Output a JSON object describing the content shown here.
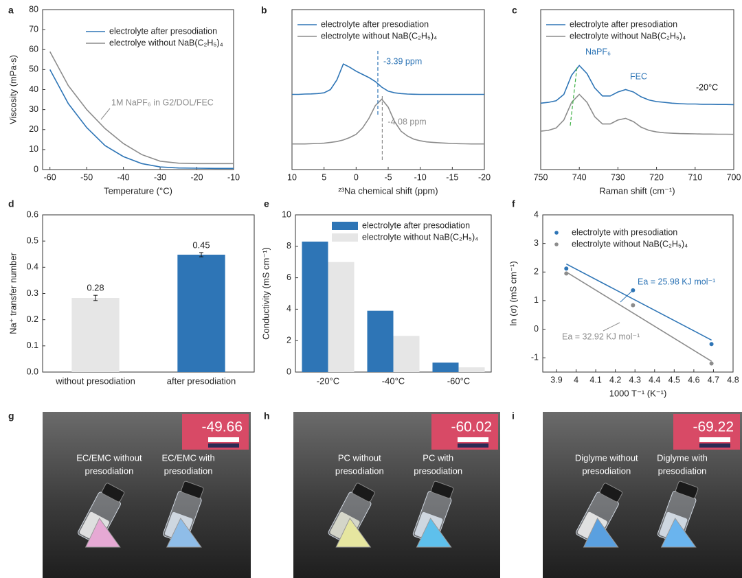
{
  "chart_data": [
    {
      "panel": "a",
      "type": "line",
      "xlabel": "Temperature (°C)",
      "ylabel": "Viscosity (mPa·s)",
      "legend": "upper right",
      "x": [
        -60,
        -55,
        -50,
        -45,
        -40,
        -35,
        -30,
        -25,
        -20,
        -15,
        -10
      ],
      "series": [
        {
          "name": "electrolyte after presodiation",
          "color": "#2e75b6",
          "values": [
            50,
            33,
            21,
            12,
            6.5,
            3,
            1.3,
            0.8,
            0.7,
            0.6,
            0.6
          ]
        },
        {
          "name": "electrolye without NaB(C₂H₅)₄",
          "color": "#8c8c8c",
          "values": [
            59,
            42,
            30,
            20.5,
            13,
            7.5,
            4.2,
            3.2,
            3,
            3,
            3
          ]
        }
      ],
      "xlim": [
        -62,
        -10
      ],
      "xticks": [
        -60,
        -50,
        -40,
        -30,
        -20,
        -10
      ],
      "ylim": [
        0,
        80
      ],
      "yticks": [
        0,
        10,
        20,
        30,
        40,
        50,
        60,
        70,
        80
      ],
      "annotation": "1M NaPF₆ in G2/DOL/FEC"
    },
    {
      "panel": "b",
      "type": "line",
      "xlabel": "²³Na chemical shift (ppm)",
      "legend": "upper left",
      "x": [
        10,
        9,
        8,
        7,
        6,
        5,
        4,
        3,
        2,
        1,
        0,
        -1,
        -2,
        -3,
        -4,
        -5,
        -6,
        -7,
        -8,
        -9,
        -10,
        -11,
        -12,
        -13,
        -14,
        -15,
        -16,
        -17,
        -18,
        -19,
        -20
      ],
      "series": [
        {
          "name": "electrolyte after presodiation",
          "color": "#2e75b6",
          "values": [
            4.7,
            4.7,
            4.72,
            4.73,
            4.75,
            4.8,
            5.0,
            5.6,
            6.6,
            6.4,
            6.15,
            5.95,
            5.75,
            5.5,
            5.15,
            4.9,
            4.8,
            4.75,
            4.72,
            4.71,
            4.7,
            4.7,
            4.7,
            4.7,
            4.7,
            4.7,
            4.7,
            4.7,
            4.7,
            4.7,
            4.7
          ]
        },
        {
          "name": "electrolyte without NaB(C₂H₅)₄",
          "color": "#8c8c8c",
          "values": [
            1.6,
            1.6,
            1.6,
            1.62,
            1.63,
            1.65,
            1.7,
            1.75,
            1.85,
            2.0,
            2.2,
            2.6,
            3.2,
            4.0,
            4.4,
            3.9,
            3.0,
            2.4,
            2.1,
            1.9,
            1.8,
            1.73,
            1.7,
            1.67,
            1.65,
            1.63,
            1.62,
            1.61,
            1.6,
            1.6,
            1.6
          ]
        }
      ],
      "xlim": [
        10,
        -20
      ],
      "xticks": [
        10,
        5,
        0,
        -5,
        -10,
        -15,
        -20
      ],
      "ylim": [
        0,
        10
      ],
      "markers": [
        {
          "label": "-3.39 ppm",
          "x": -3.39
        },
        {
          "label": "-4.08 ppm",
          "x": -4.08
        }
      ]
    },
    {
      "panel": "c",
      "type": "line",
      "xlabel": "Raman shift (cm⁻¹)",
      "legend": "upper left",
      "x": [
        750,
        748,
        746,
        744,
        742,
        740,
        738,
        736,
        734,
        732,
        730,
        728,
        726,
        724,
        722,
        720,
        718,
        716,
        714,
        712,
        710,
        708,
        706,
        704,
        702,
        700
      ],
      "series": [
        {
          "name": "electrolyte after presodiation",
          "color": "#2e75b6",
          "values": [
            4.15,
            4.2,
            4.3,
            4.7,
            5.9,
            6.5,
            6.0,
            5.1,
            4.6,
            4.6,
            4.85,
            5.0,
            4.85,
            4.55,
            4.35,
            4.25,
            4.2,
            4.15,
            4.12,
            4.1,
            4.1,
            4.08,
            4.08,
            4.07,
            4.07,
            4.06
          ]
        },
        {
          "name": "electrolyte without NaB(C₂H₅)₄",
          "color": "#8c8c8c",
          "values": [
            2.4,
            2.45,
            2.6,
            3.1,
            4.2,
            4.7,
            4.2,
            3.3,
            2.85,
            2.85,
            3.1,
            3.2,
            3.0,
            2.65,
            2.45,
            2.35,
            2.3,
            2.27,
            2.25,
            2.24,
            2.23,
            2.22,
            2.22,
            2.21,
            2.21,
            2.2
          ]
        }
      ],
      "xlim": [
        750,
        700
      ],
      "xticks": [
        750,
        740,
        730,
        720,
        710,
        700
      ],
      "ylim": [
        0,
        10
      ],
      "annotations": [
        "NaPF₆",
        "FEC",
        "-20°C"
      ]
    },
    {
      "panel": "d",
      "type": "bar",
      "ylabel": "Na⁺ transfer number",
      "categories": [
        "without presodiation",
        "after presodiation"
      ],
      "values": [
        0.283,
        0.448
      ],
      "value_labels": [
        "0.28",
        "0.45"
      ],
      "errors": [
        0.01,
        0.008
      ],
      "colors": [
        "#e6e6e6",
        "#2e75b6"
      ],
      "ylim": [
        0,
        0.6
      ],
      "yticks": [
        {
          "value": 0,
          "label": "0.0"
        },
        0.1,
        0.2,
        0.3,
        0.4,
        0.5,
        0.6
      ]
    },
    {
      "panel": "e",
      "type": "bar",
      "ylabel": "Conductivity (mS cm⁻¹)",
      "legend": "upper right",
      "categories": [
        "-20°C",
        "-40°C",
        "-60°C"
      ],
      "series": [
        {
          "name": "electrolyte after presodiation",
          "color": "#2e75b6",
          "values": [
            8.3,
            3.9,
            0.6
          ]
        },
        {
          "name": "electrolyte without NaB(C₂H₅)₄",
          "color": "#e6e6e6",
          "values": [
            7.0,
            2.3,
            0.3
          ]
        }
      ],
      "ylim": [
        0,
        10
      ],
      "yticks": [
        0,
        2,
        4,
        6,
        8,
        10
      ]
    },
    {
      "panel": "f",
      "type": "scatter",
      "xlabel": "1000 T⁻¹ (K⁻¹)",
      "ylabel": "ln (σ) (mS cm⁻¹)",
      "legend": "upper left",
      "x": [
        3.95,
        4.29,
        4.69
      ],
      "series": [
        {
          "name": "electrolyte with presodiation",
          "color": "#2e75b6",
          "values": [
            2.12,
            1.36,
            -0.52
          ],
          "fit": {
            "x": [
              3.95,
              4.69
            ],
            "values": [
              2.28,
              -0.38
            ]
          },
          "annotation": "Ea = 25.98 KJ mol⁻¹"
        },
        {
          "name": "electrolyte without NaB(C₂H₅)₄",
          "color": "#8c8c8c",
          "values": [
            1.95,
            0.84,
            -1.2
          ],
          "fit": {
            "x": [
              3.95,
              4.69
            ],
            "values": [
              2.0,
              -1.12
            ]
          },
          "annotation": "Ea = 32.92 KJ mol⁻¹"
        }
      ],
      "xlim": [
        3.83,
        4.8
      ],
      "xticks": [
        3.9,
        4.0,
        4.1,
        4.2,
        4.3,
        4.4,
        4.5,
        4.6,
        4.7,
        4.8
      ],
      "ylim": [
        -1.5,
        4
      ],
      "yticks": [
        -1,
        0,
        1,
        2,
        3,
        4
      ]
    }
  ],
  "photos": [
    {
      "panel": "g",
      "readout": "-49.66",
      "captions": [
        [
          "EC/EMC without",
          "presodiation"
        ],
        [
          "EC/EMC with",
          "presodiation"
        ]
      ]
    },
    {
      "panel": "h",
      "readout": "-60.02",
      "captions": [
        [
          "PC without",
          "presodiation"
        ],
        [
          "PC with",
          "presodiation"
        ]
      ]
    },
    {
      "panel": "i",
      "readout": "-69.22",
      "captions": [
        [
          "Diglyme without",
          "presodiation"
        ],
        [
          "Diglyme with",
          "presodiation"
        ]
      ]
    }
  ]
}
